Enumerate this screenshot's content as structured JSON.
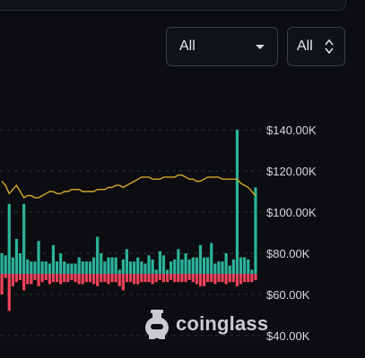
{
  "controls": {
    "range_select": {
      "value": "All"
    },
    "series_select": {
      "value": "All"
    }
  },
  "watermark": {
    "text": "coinglass",
    "icon": "coinglass-logo-icon"
  },
  "colors": {
    "background": "#0b0d10",
    "inflow": "#2bb39a",
    "outflow": "#f0435a",
    "price_line": "#d6a928",
    "grid": "#2e3238"
  },
  "chart_data": {
    "type": "bar",
    "ylim": [
      40000,
      140000
    ],
    "y_ticks": [
      {
        "value": 140000,
        "label": "$140.00K"
      },
      {
        "value": 120000,
        "label": "$120.00K"
      },
      {
        "value": 100000,
        "label": "$100.00K"
      },
      {
        "value": 80000,
        "label": "$80.00K"
      },
      {
        "value": 60000,
        "label": "$60.00K"
      },
      {
        "value": 40000,
        "label": "$40.00K"
      }
    ],
    "grid": true,
    "series": [
      {
        "kind": "bar-positive",
        "values": [
          80000,
          79000,
          104000,
          78000,
          87000,
          80000,
          104000,
          77000,
          76000,
          76000,
          86000,
          76000,
          76000,
          75000,
          84000,
          76000,
          80000,
          76000,
          75000,
          75000,
          75000,
          78000,
          76000,
          76000,
          76000,
          78000,
          88000,
          80000,
          76000,
          78000,
          78000,
          78000,
          72000,
          77000,
          82000,
          76000,
          76000,
          78000,
          76000,
          75000,
          79000,
          77000,
          72000,
          81000,
          79000,
          72000,
          76000,
          77000,
          82000,
          77000,
          80000,
          77000,
          78000,
          78000,
          84000,
          78000,
          78000,
          85000,
          75000,
          76000,
          76000,
          80000,
          74000,
          77000,
          140000,
          78000,
          78000,
          77000,
          72000,
          112000
        ]
      },
      {
        "kind": "bar-negative",
        "values": [
          60000,
          68000,
          52000,
          64000,
          66000,
          67000,
          62000,
          65000,
          65000,
          67000,
          64000,
          66000,
          67000,
          65000,
          66000,
          66000,
          65000,
          66000,
          66000,
          67000,
          66000,
          65000,
          65000,
          66000,
          66000,
          65000,
          64000,
          66000,
          66000,
          65000,
          66000,
          66000,
          64000,
          62000,
          66000,
          66000,
          65000,
          65000,
          66000,
          66000,
          66000,
          65000,
          66000,
          67000,
          66000,
          66000,
          67000,
          66000,
          66000,
          66000,
          66000,
          67000,
          66000,
          65000,
          64000,
          64000,
          66000,
          66000,
          65000,
          66000,
          66000,
          65000,
          66000,
          66000,
          64000,
          65000,
          66000,
          66000,
          66000,
          67000
        ]
      },
      {
        "kind": "line",
        "values": [
          115000,
          113000,
          109000,
          111000,
          113000,
          110000,
          107000,
          108000,
          108000,
          107000,
          107000,
          108000,
          109000,
          110000,
          110000,
          109000,
          109000,
          110000,
          110000,
          111000,
          111000,
          111000,
          110000,
          110000,
          110000,
          110000,
          111000,
          111000,
          111000,
          112000,
          112000,
          113000,
          113000,
          112000,
          113000,
          114000,
          115000,
          116000,
          117000,
          117000,
          117000,
          116000,
          116000,
          116000,
          117000,
          117000,
          117000,
          117000,
          118000,
          118000,
          117000,
          116000,
          116000,
          115000,
          115000,
          116000,
          117000,
          117000,
          117000,
          117000,
          116000,
          116000,
          116000,
          116000,
          116000,
          114000,
          113000,
          112000,
          110000,
          108000
        ]
      }
    ]
  }
}
